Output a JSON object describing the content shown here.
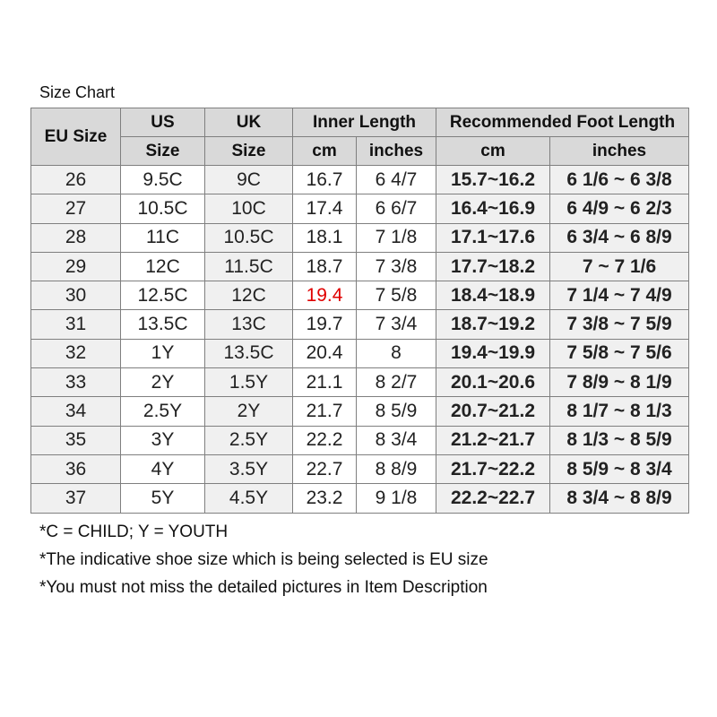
{
  "title": "Size Chart",
  "headers": {
    "eu": "EU Size",
    "us_1": "US",
    "us_2": "Size",
    "uk_1": "UK",
    "uk_2": "Size",
    "inner_length": "Inner Length",
    "recommended": "Recommended Foot Length",
    "cm": "cm",
    "inches": "inches",
    "rec_cm": "cm",
    "rec_inches": "inches"
  },
  "rows": [
    {
      "eu": "26",
      "us": "9.5C",
      "uk": "9C",
      "cm": "16.7",
      "inches": "6 4/7",
      "rec_cm": "15.7~16.2",
      "rec_inches": "6 1/6 ~ 6 3/8"
    },
    {
      "eu": "27",
      "us": "10.5C",
      "uk": "10C",
      "cm": "17.4",
      "inches": "6 6/7",
      "rec_cm": "16.4~16.9",
      "rec_inches": "6 4/9 ~ 6 2/3"
    },
    {
      "eu": "28",
      "us": "11C",
      "uk": "10.5C",
      "cm": "18.1",
      "inches": "7 1/8",
      "rec_cm": "17.1~17.6",
      "rec_inches": "6 3/4 ~ 6 8/9"
    },
    {
      "eu": "29",
      "us": "12C",
      "uk": "11.5C",
      "cm": "18.7",
      "inches": "7 3/8",
      "rec_cm": "17.7~18.2",
      "rec_inches": "7 ~ 7 1/6"
    },
    {
      "eu": "30",
      "us": "12.5C",
      "uk": "12C",
      "cm": "19.4",
      "inches": "7 5/8",
      "rec_cm": "18.4~18.9",
      "rec_inches": "7 1/4 ~ 7 4/9",
      "cm_highlight": "#e00000"
    },
    {
      "eu": "31",
      "us": "13.5C",
      "uk": "13C",
      "cm": "19.7",
      "inches": "7 3/4",
      "rec_cm": "18.7~19.2",
      "rec_inches": "7 3/8 ~ 7 5/9"
    },
    {
      "eu": "32",
      "us": "1Y",
      "uk": "13.5C",
      "cm": "20.4",
      "inches": "8",
      "rec_cm": "19.4~19.9",
      "rec_inches": "7 5/8 ~ 7 5/6"
    },
    {
      "eu": "33",
      "us": "2Y",
      "uk": "1.5Y",
      "cm": "21.1",
      "inches": "8 2/7",
      "rec_cm": "20.1~20.6",
      "rec_inches": "7 8/9 ~ 8 1/9"
    },
    {
      "eu": "34",
      "us": "2.5Y",
      "uk": "2Y",
      "cm": "21.7",
      "inches": "8 5/9",
      "rec_cm": "20.7~21.2",
      "rec_inches": "8 1/7 ~ 8 1/3"
    },
    {
      "eu": "35",
      "us": "3Y",
      "uk": "2.5Y",
      "cm": "22.2",
      "inches": "8 3/4",
      "rec_cm": "21.2~21.7",
      "rec_inches": "8 1/3 ~ 8 5/9"
    },
    {
      "eu": "36",
      "us": "4Y",
      "uk": "3.5Y",
      "cm": "22.7",
      "inches": "8 8/9",
      "rec_cm": "21.7~22.2",
      "rec_inches": "8 5/9 ~ 8 3/4"
    },
    {
      "eu": "37",
      "us": "5Y",
      "uk": "4.5Y",
      "cm": "23.2",
      "inches": "9 1/8",
      "rec_cm": "22.2~22.7",
      "rec_inches": "8 3/4 ~ 8 8/9"
    }
  ],
  "notes": [
    "*C = CHILD; Y = YOUTH",
    "*The indicative shoe size which is being selected is EU size",
    "*You must not miss the detailed pictures in Item Description"
  ],
  "colors": {
    "header_bg": "#d9d9d9",
    "shade_bg": "#f0f0f0",
    "recommended_text": "#7030a0",
    "highlight_text": "#e00000"
  }
}
